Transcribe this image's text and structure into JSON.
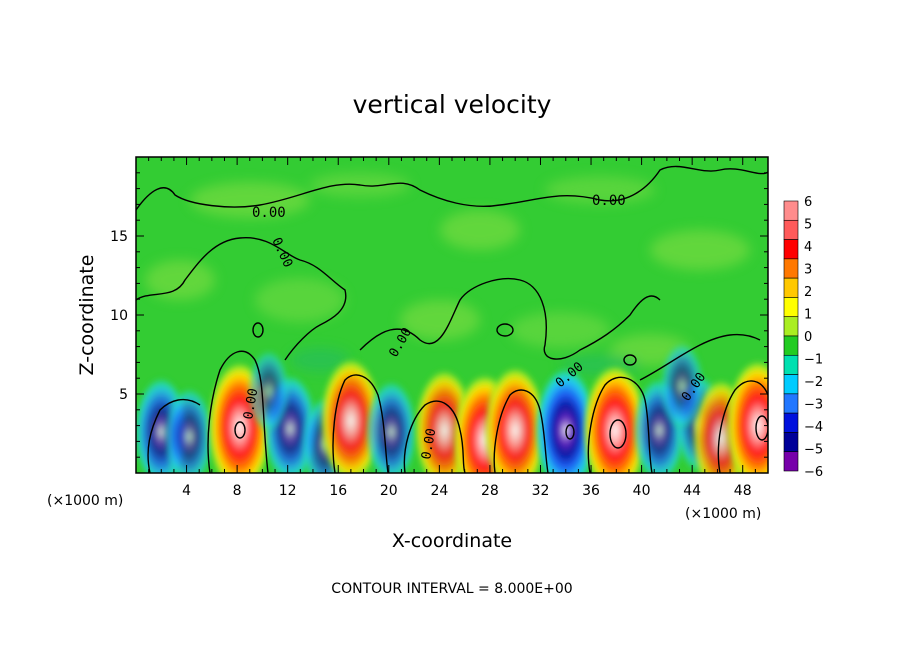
{
  "chart_data": {
    "type": "heatmap",
    "title": "vertical velocity",
    "xlabel": "X-coordinate",
    "ylabel": "Z-coordinate",
    "x_unit": "(×1000 m)",
    "x_unit_right": "(×1000 m)",
    "xlim": [
      0,
      50
    ],
    "ylim": [
      0,
      20
    ],
    "xticks": [
      4,
      8,
      12,
      16,
      20,
      24,
      28,
      32,
      36,
      40,
      44,
      48
    ],
    "yticks": [
      5,
      10,
      15
    ],
    "colorbar": {
      "levels": [
        "6",
        "5",
        "4",
        "3",
        "2",
        "1",
        "0",
        "−1",
        "−2",
        "−3",
        "−4",
        "−5",
        "−6"
      ],
      "colors": [
        "#ff8c8c",
        "#ff5a5a",
        "#ff0000",
        "#ff7800",
        "#ffc800",
        "#ffff00",
        "#aaee22",
        "#22cc22",
        "#00e0b0",
        "#00ccff",
        "#2277ff",
        "#0011dd",
        "#000099",
        "#7700aa"
      ]
    },
    "contour_labels": [
      "0.00",
      "0.00",
      "0.00",
      "0.00",
      "0.00",
      "0.00",
      "0.00",
      "0.00"
    ],
    "contour_interval_label": "CONTOUR INTERVAL = 8.000E+00",
    "cells": [
      {
        "x": 2.0,
        "z": 2.6,
        "w": -3.8
      },
      {
        "x": 4.2,
        "z": 2.3,
        "w": -2.6
      },
      {
        "x": 8.2,
        "z": 2.9,
        "w": 6.0
      },
      {
        "x": 12.2,
        "z": 2.8,
        "w": -3.7
      },
      {
        "x": 15.0,
        "z": 1.8,
        "w": -2.4
      },
      {
        "x": 17.0,
        "z": 3.3,
        "w": 5.4
      },
      {
        "x": 20.2,
        "z": 2.6,
        "w": -3.1
      },
      {
        "x": 24.4,
        "z": 2.7,
        "w": 5.0
      },
      {
        "x": 27.6,
        "z": 2.1,
        "w": 6.0
      },
      {
        "x": 30.0,
        "z": 2.7,
        "w": 5.6
      },
      {
        "x": 34.0,
        "z": 2.7,
        "w": -5.5
      },
      {
        "x": 37.9,
        "z": 2.7,
        "w": 6.0
      },
      {
        "x": 41.4,
        "z": 2.7,
        "w": -3.3
      },
      {
        "x": 44.6,
        "z": 3.1,
        "w": -2.6
      },
      {
        "x": 46.3,
        "z": 2.2,
        "w": 4.6
      },
      {
        "x": 49.2,
        "z": 3.0,
        "w": 6.0
      },
      {
        "x": 43.2,
        "z": 5.5,
        "w": -1.5
      },
      {
        "x": 10.5,
        "z": 5.2,
        "w": -1.0
      }
    ]
  }
}
